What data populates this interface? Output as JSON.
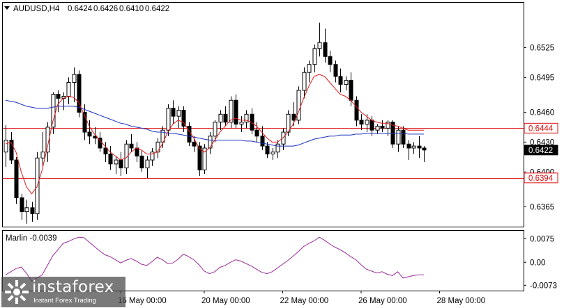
{
  "header": {
    "symbol": "AUDUSD,H4",
    "open": "0.6424",
    "high": "0.6426",
    "low": "0.6410",
    "close": "0.6422"
  },
  "indicator": {
    "label": "Marlin -0.0039"
  },
  "brand": {
    "name": "instaforex",
    "tagline": "Instant Forex Trading"
  },
  "colors": {
    "bull": "#ffffff",
    "bear": "#000000",
    "ma_fast": "#e01818",
    "ma_slow": "#1a2fc0",
    "level_line": "#dd1111",
    "marlin": "#9a2a9a",
    "current_tag": "#000000"
  },
  "chart_data": [
    {
      "type": "candlestick",
      "symbol": "AUDUSD",
      "timeframe": "H4",
      "ylim": [
        0.6345,
        0.657
      ],
      "y_ticks": [
        "0.6525",
        "0.6495",
        "0.6460",
        "0.6430",
        "0.6400",
        "0.6365"
      ],
      "x_ticks": [
        "16 May 00:00",
        "20 May 00:00",
        "22 May 00:00",
        "26 May 00:00",
        "28 May 00:00"
      ],
      "x_tick_index": [
        22,
        38,
        53,
        68,
        83
      ],
      "levels": [
        {
          "label": "0.6444",
          "value": 0.6444
        },
        {
          "label": "0.6394",
          "value": 0.6394
        }
      ],
      "current_price": {
        "label": "0.6422",
        "value": 0.6422
      },
      "ohlc": [
        [
          0.642,
          0.6447,
          0.6405,
          0.6432
        ],
        [
          0.6432,
          0.644,
          0.6408,
          0.6412
        ],
        [
          0.6412,
          0.6415,
          0.6368,
          0.6374
        ],
        [
          0.6374,
          0.6378,
          0.6352,
          0.636
        ],
        [
          0.636,
          0.6372,
          0.6348,
          0.6364
        ],
        [
          0.6364,
          0.637,
          0.635,
          0.6358
        ],
        [
          0.6358,
          0.642,
          0.6352,
          0.6414
        ],
        [
          0.6414,
          0.644,
          0.6405,
          0.642
        ],
        [
          0.642,
          0.645,
          0.641,
          0.6445
        ],
        [
          0.6445,
          0.648,
          0.6438,
          0.6478
        ],
        [
          0.6478,
          0.6482,
          0.646,
          0.6474
        ],
        [
          0.6474,
          0.648,
          0.6462,
          0.6476
        ],
        [
          0.6476,
          0.6495,
          0.6468,
          0.649
        ],
        [
          0.649,
          0.6505,
          0.647,
          0.6498
        ],
        [
          0.6498,
          0.6502,
          0.6455,
          0.646
        ],
        [
          0.646,
          0.6468,
          0.6432,
          0.644
        ],
        [
          0.644,
          0.6452,
          0.6428,
          0.6436
        ],
        [
          0.6436,
          0.6445,
          0.6428,
          0.6434
        ],
        [
          0.6434,
          0.644,
          0.642,
          0.6424
        ],
        [
          0.6424,
          0.643,
          0.641,
          0.6418
        ],
        [
          0.6418,
          0.6426,
          0.6402,
          0.6408
        ],
        [
          0.6408,
          0.6416,
          0.6398,
          0.6412
        ],
        [
          0.6412,
          0.642,
          0.6396,
          0.6404
        ],
        [
          0.6404,
          0.6432,
          0.6398,
          0.6428
        ],
        [
          0.6428,
          0.6438,
          0.642,
          0.6424
        ],
        [
          0.6424,
          0.643,
          0.641,
          0.6416
        ],
        [
          0.6416,
          0.6422,
          0.64,
          0.6404
        ],
        [
          0.6404,
          0.6416,
          0.6394,
          0.6412
        ],
        [
          0.6412,
          0.6424,
          0.6406,
          0.642
        ],
        [
          0.642,
          0.6434,
          0.6414,
          0.643
        ],
        [
          0.643,
          0.6446,
          0.6424,
          0.6442
        ],
        [
          0.6442,
          0.6468,
          0.6436,
          0.6464
        ],
        [
          0.6464,
          0.6472,
          0.6448,
          0.6456
        ],
        [
          0.6456,
          0.6466,
          0.6444,
          0.6462
        ],
        [
          0.6462,
          0.6466,
          0.644,
          0.6446
        ],
        [
          0.6446,
          0.645,
          0.6426,
          0.643
        ],
        [
          0.643,
          0.6436,
          0.642,
          0.6426
        ],
        [
          0.6426,
          0.643,
          0.6396,
          0.6402
        ],
        [
          0.6402,
          0.6428,
          0.6398,
          0.6424
        ],
        [
          0.6424,
          0.644,
          0.6418,
          0.6436
        ],
        [
          0.6436,
          0.6452,
          0.643,
          0.645
        ],
        [
          0.645,
          0.6462,
          0.6442,
          0.6458
        ],
        [
          0.6458,
          0.6466,
          0.6446,
          0.645
        ],
        [
          0.645,
          0.6476,
          0.6444,
          0.6472
        ],
        [
          0.6472,
          0.6478,
          0.6444,
          0.6448
        ],
        [
          0.6448,
          0.6456,
          0.644,
          0.645
        ],
        [
          0.645,
          0.6462,
          0.6444,
          0.6458
        ],
        [
          0.6458,
          0.6464,
          0.6438,
          0.6442
        ],
        [
          0.6442,
          0.645,
          0.643,
          0.6436
        ],
        [
          0.6436,
          0.6446,
          0.6422,
          0.6426
        ],
        [
          0.6426,
          0.643,
          0.6414,
          0.6418
        ],
        [
          0.6418,
          0.6424,
          0.6412,
          0.642
        ],
        [
          0.642,
          0.6432,
          0.6414,
          0.6428
        ],
        [
          0.6428,
          0.6444,
          0.6422,
          0.644
        ],
        [
          0.644,
          0.6462,
          0.6436,
          0.6458
        ],
        [
          0.6458,
          0.647,
          0.6446,
          0.6452
        ],
        [
          0.6452,
          0.6486,
          0.6448,
          0.6482
        ],
        [
          0.6482,
          0.6505,
          0.6474,
          0.65
        ],
        [
          0.65,
          0.6512,
          0.649,
          0.6508
        ],
        [
          0.6508,
          0.6528,
          0.65,
          0.6524
        ],
        [
          0.6524,
          0.655,
          0.6516,
          0.653
        ],
        [
          0.653,
          0.6544,
          0.651,
          0.6516
        ],
        [
          0.6516,
          0.6522,
          0.65,
          0.6508
        ],
        [
          0.6508,
          0.6512,
          0.649,
          0.6496
        ],
        [
          0.6496,
          0.6504,
          0.648,
          0.6488
        ],
        [
          0.6488,
          0.6496,
          0.6482,
          0.6492
        ],
        [
          0.6492,
          0.65,
          0.6466,
          0.6472
        ],
        [
          0.6472,
          0.6476,
          0.6446,
          0.6452
        ],
        [
          0.6452,
          0.6458,
          0.6442,
          0.6448
        ],
        [
          0.6448,
          0.6458,
          0.644,
          0.6452
        ],
        [
          0.6452,
          0.6456,
          0.6436,
          0.6442
        ],
        [
          0.6442,
          0.6448,
          0.6438,
          0.6446
        ],
        [
          0.6446,
          0.6452,
          0.644,
          0.6444
        ],
        [
          0.6444,
          0.6452,
          0.6436,
          0.645
        ],
        [
          0.645,
          0.6452,
          0.6424,
          0.6428
        ],
        [
          0.6428,
          0.6446,
          0.642,
          0.6442
        ],
        [
          0.6442,
          0.6446,
          0.6424,
          0.6428
        ],
        [
          0.6428,
          0.6432,
          0.6412,
          0.6424
        ],
        [
          0.6424,
          0.643,
          0.6418,
          0.6426
        ],
        [
          0.6426,
          0.6436,
          0.6414,
          0.6424
        ],
        [
          0.6424,
          0.6426,
          0.641,
          0.6422
        ]
      ],
      "ma_fast": [
        0.6428,
        0.643,
        0.642,
        0.64,
        0.6385,
        0.6378,
        0.6385,
        0.6402,
        0.6425,
        0.645,
        0.6468,
        0.6474,
        0.6476,
        0.6475,
        0.647,
        0.6458,
        0.6446,
        0.6438,
        0.6432,
        0.6426,
        0.642,
        0.6416,
        0.6412,
        0.6414,
        0.642,
        0.6424,
        0.6422,
        0.6418,
        0.6418,
        0.642,
        0.6428,
        0.644,
        0.6448,
        0.6452,
        0.645,
        0.6442,
        0.6434,
        0.6424,
        0.642,
        0.6424,
        0.6432,
        0.644,
        0.6446,
        0.6452,
        0.6454,
        0.6452,
        0.6452,
        0.645,
        0.6446,
        0.644,
        0.6434,
        0.643,
        0.643,
        0.6434,
        0.644,
        0.6448,
        0.646,
        0.6474,
        0.6486,
        0.6496,
        0.6498,
        0.6496,
        0.649,
        0.6484,
        0.6478,
        0.6476,
        0.6472,
        0.6466,
        0.646,
        0.6456,
        0.6452,
        0.645,
        0.6449,
        0.6449,
        0.6447,
        0.6446,
        0.6444,
        0.6442,
        0.6442,
        0.6442,
        0.6442
      ],
      "ma_slow": [
        0.6472,
        0.6471,
        0.647,
        0.6468,
        0.6466,
        0.6465,
        0.6464,
        0.6464,
        0.6464,
        0.6465,
        0.6466,
        0.6466,
        0.6466,
        0.6466,
        0.6465,
        0.6463,
        0.6461,
        0.6459,
        0.6457,
        0.6455,
        0.6453,
        0.6451,
        0.6449,
        0.6448,
        0.6446,
        0.6445,
        0.6444,
        0.6443,
        0.6441,
        0.644,
        0.644,
        0.6439,
        0.6439,
        0.6438,
        0.6437,
        0.6436,
        0.6435,
        0.6434,
        0.6433,
        0.6432,
        0.6432,
        0.6432,
        0.6432,
        0.6432,
        0.6432,
        0.6432,
        0.6431,
        0.6431,
        0.643,
        0.6429,
        0.6428,
        0.6427,
        0.6426,
        0.6426,
        0.6426,
        0.6426,
        0.6427,
        0.6429,
        0.6431,
        0.6433,
        0.6434,
        0.6435,
        0.6436,
        0.6436,
        0.6437,
        0.6437,
        0.6437,
        0.6438,
        0.6438,
        0.6439,
        0.6439,
        0.6439,
        0.6439,
        0.6439,
        0.6439,
        0.6439,
        0.6439,
        0.6438,
        0.6438,
        0.6438,
        0.6438
      ]
    },
    {
      "type": "line",
      "name": "Marlin",
      "ylim": [
        -0.009,
        0.01
      ],
      "y_ticks": [
        "0.0075",
        "0.00",
        "-0.0073"
      ],
      "y_tick_values": [
        0.0075,
        0.0,
        -0.0073
      ],
      "start_index": 0,
      "values": [
        -0.004,
        -0.003,
        -0.002,
        -0.0015,
        -0.0035,
        -0.006,
        -0.005,
        -0.004,
        -0.001,
        0.002,
        0.004,
        0.006,
        0.0066,
        0.0074,
        0.008,
        0.0078,
        0.0064,
        0.005,
        0.0036,
        0.0024,
        0.0018,
        0.0008,
        -0.0002,
        0.0006,
        0.0012,
        0.0004,
        -0.0006,
        -0.001,
        0.0002,
        0.0016,
        0.0008,
        -0.0004,
        -0.0002,
        0.001,
        0.0026,
        0.0018,
        0.0008,
        -0.0008,
        -0.0028,
        -0.0036,
        -0.003,
        -0.0016,
        -0.001,
        0.0,
        0.0008,
        0.0004,
        -0.0004,
        -0.0012,
        -0.0022,
        -0.0032,
        -0.0036,
        -0.003,
        -0.0018,
        -0.0006,
        0.0006,
        0.002,
        0.0034,
        0.005,
        0.006,
        0.0068,
        0.008,
        0.007,
        0.0058,
        0.0048,
        0.004,
        0.003,
        0.0018,
        0.0008,
        -0.0008,
        -0.0022,
        -0.0028,
        -0.0034,
        -0.003,
        -0.0038,
        -0.0042,
        -0.003,
        -0.005,
        -0.0046,
        -0.0042,
        -0.004,
        -0.004
      ]
    }
  ]
}
